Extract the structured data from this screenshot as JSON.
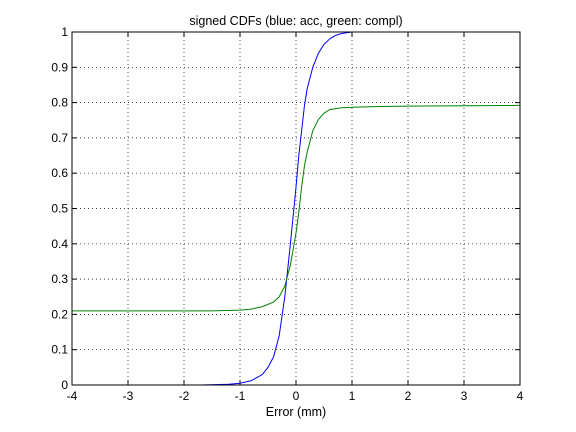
{
  "chart_data": {
    "type": "line",
    "title": "signed CDFs (blue: acc, green: compl)",
    "xlabel": "Error (mm)",
    "ylabel": "",
    "xlim": [
      -4,
      4
    ],
    "ylim": [
      0,
      1
    ],
    "xticks": [
      "-4",
      "-3",
      "-2",
      "-1",
      "0",
      "1",
      "2",
      "3",
      "4"
    ],
    "yticks": [
      "0",
      "0.1",
      "0.2",
      "0.3",
      "0.4",
      "0.5",
      "0.6",
      "0.7",
      "0.8",
      "0.9",
      "1"
    ],
    "grid": true,
    "series": [
      {
        "color": "#0000ff",
        "x": [
          -1.7,
          -1.2,
          -1.0,
          -0.8,
          -0.6,
          -0.5,
          -0.4,
          -0.3,
          -0.2,
          -0.1,
          0.0,
          0.05,
          0.1,
          0.15,
          0.2,
          0.3,
          0.4,
          0.5,
          0.6,
          0.7,
          0.8,
          0.9,
          1.0,
          1.2,
          1.5,
          1.8
        ],
        "y": [
          0.0,
          0.002,
          0.005,
          0.012,
          0.03,
          0.05,
          0.08,
          0.14,
          0.25,
          0.4,
          0.56,
          0.65,
          0.72,
          0.79,
          0.84,
          0.9,
          0.94,
          0.965,
          0.98,
          0.99,
          0.995,
          0.998,
          1.0,
          1.0,
          1.0,
          1.0
        ]
      },
      {
        "color": "#008000",
        "x": [
          -4.0,
          -3.0,
          -2.0,
          -1.5,
          -1.0,
          -0.8,
          -0.6,
          -0.4,
          -0.3,
          -0.2,
          -0.1,
          0.0,
          0.05,
          0.1,
          0.15,
          0.2,
          0.3,
          0.4,
          0.5,
          0.6,
          0.8,
          1.0,
          1.5,
          2.0,
          3.0,
          4.0
        ],
        "y": [
          0.21,
          0.21,
          0.21,
          0.21,
          0.212,
          0.215,
          0.222,
          0.235,
          0.25,
          0.28,
          0.34,
          0.43,
          0.49,
          0.56,
          0.62,
          0.66,
          0.72,
          0.752,
          0.77,
          0.78,
          0.785,
          0.787,
          0.789,
          0.79,
          0.791,
          0.792
        ]
      }
    ]
  }
}
